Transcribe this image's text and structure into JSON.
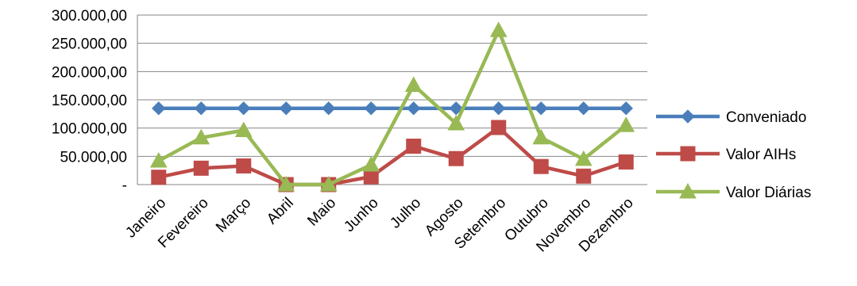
{
  "chart_data": {
    "type": "line",
    "categories": [
      "Janeiro",
      "Fevereiro",
      "Março",
      "Abril",
      "Maio",
      "Junho",
      "Julho",
      "Agosto",
      "Setembro",
      "Outubro",
      "Novembro",
      "Dezembro"
    ],
    "series": [
      {
        "name": "Conveniado",
        "color": "#4a7ebb",
        "marker": "diamond",
        "values": [
          135000,
          135000,
          135000,
          135000,
          135000,
          135000,
          135000,
          135000,
          135000,
          135000,
          135000,
          135000
        ]
      },
      {
        "name": "Valor AIHs",
        "color": "#be4b48",
        "marker": "square",
        "values": [
          13000,
          29000,
          33000,
          0,
          0,
          14000,
          68000,
          46000,
          101000,
          32000,
          15000,
          40000
        ]
      },
      {
        "name": "Valor Diárias",
        "color": "#98b954",
        "marker": "triangle",
        "values": [
          42000,
          83000,
          96000,
          0,
          0,
          35000,
          176000,
          108000,
          273000,
          83000,
          45000,
          105000
        ]
      }
    ],
    "y_ticks": [
      {
        "value": 0,
        "label": "-"
      },
      {
        "value": 50000,
        "label": "50.000,00"
      },
      {
        "value": 100000,
        "label": "100.000,00"
      },
      {
        "value": 150000,
        "label": "150.000,00"
      },
      {
        "value": 200000,
        "label": "200.000,00"
      },
      {
        "value": 250000,
        "label": "250.000,00"
      },
      {
        "value": 300000,
        "label": "300.000,00"
      }
    ],
    "ylim": [
      0,
      300000
    ],
    "grid": true,
    "legend_position": "right"
  }
}
